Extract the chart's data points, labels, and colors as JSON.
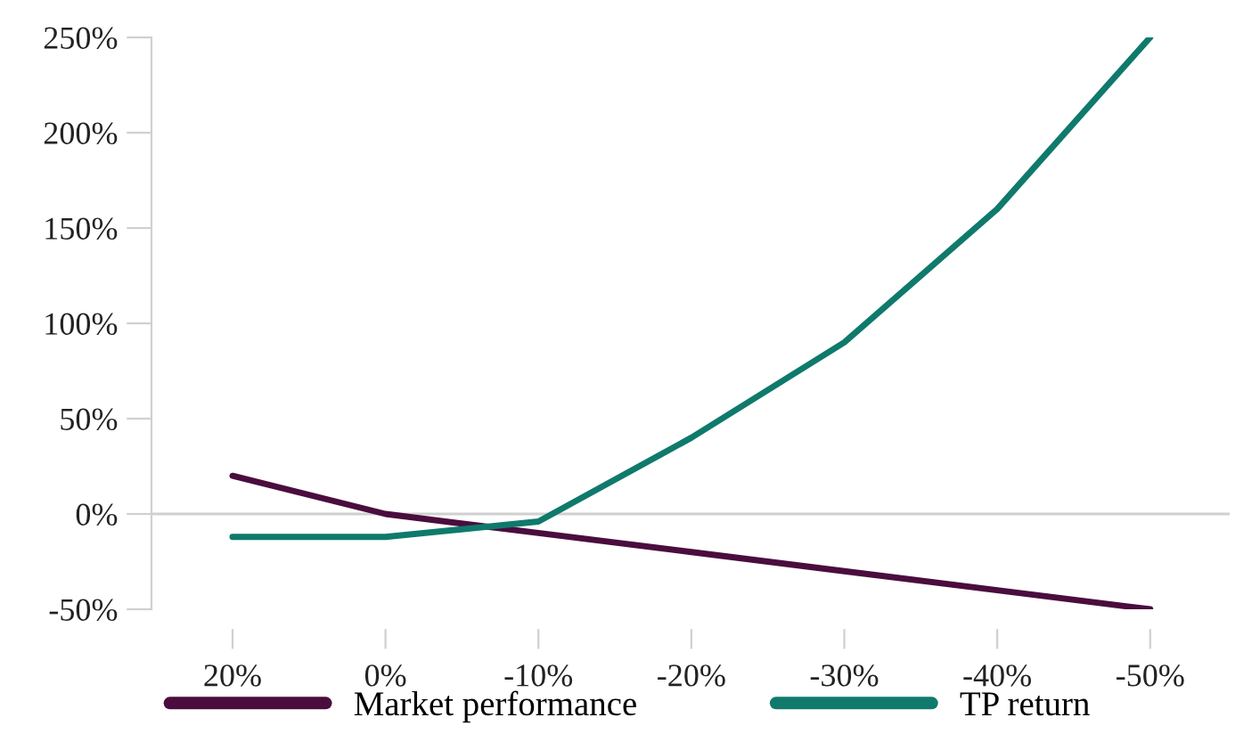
{
  "chart_data": {
    "type": "line",
    "categories": [
      "20%",
      "0%",
      "-10%",
      "-20%",
      "-30%",
      "-40%",
      "-50%"
    ],
    "series": [
      {
        "name": "Market performance",
        "color": "#4a0d3e",
        "values": [
          20,
          0,
          -10,
          -20,
          -30,
          -40,
          -50
        ]
      },
      {
        "name": "TP return",
        "color": "#0f7a6c",
        "values": [
          -12,
          -12,
          -4,
          40,
          90,
          160,
          250
        ]
      }
    ],
    "ylim": [
      -50,
      250
    ],
    "yticks": [
      {
        "value": -50,
        "label": "-50%"
      },
      {
        "value": 0,
        "label": "0%"
      },
      {
        "value": 50,
        "label": "50%"
      },
      {
        "value": 100,
        "label": "100%"
      },
      {
        "value": 150,
        "label": "150%"
      },
      {
        "value": 200,
        "label": "200%"
      },
      {
        "value": 250,
        "label": "250%"
      }
    ],
    "ref_lines": [
      {
        "axis": "y",
        "value": 0,
        "color": "#d0d0d0"
      }
    ],
    "grid": false,
    "legend": "bottom",
    "marker": "none",
    "line_style": "solid"
  }
}
